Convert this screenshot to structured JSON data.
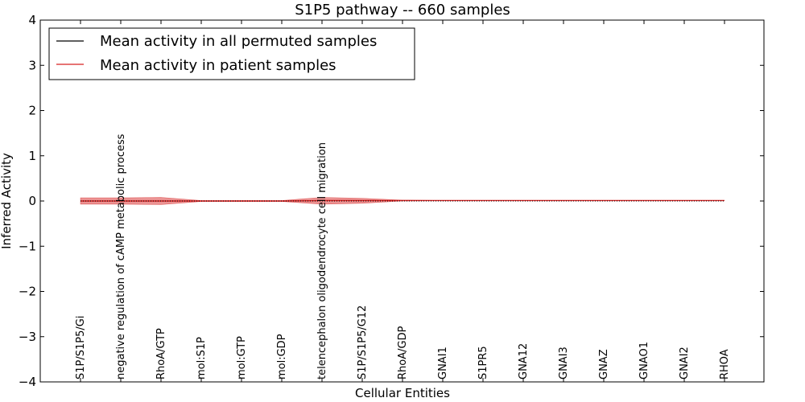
{
  "chart_data": {
    "type": "line",
    "title": "S1P5 pathway -- 660 samples",
    "xlabel": "Cellular Entities",
    "ylabel": "Inferred Activity",
    "ylim": [
      -4,
      4
    ],
    "yticks": [
      4,
      3,
      2,
      1,
      0,
      -1,
      -2,
      -3,
      -4
    ],
    "ytick_labels": [
      "4",
      "3",
      "2",
      "1",
      "0",
      "−1",
      "−2",
      "−3",
      "−4"
    ],
    "categories": [
      "S1P/S1P5/Gi",
      "negative regulation of cAMP metabolic process",
      "RhoA/GTP",
      "mol:S1P",
      "mol:GTP",
      "mol:GDP",
      "telencephalon oligodendrocyte cell migration",
      "S1P/S1P5/G12",
      "RhoA/GDP",
      "GNAI1",
      "S1PR5",
      "GNA12",
      "GNAI3",
      "GNAZ",
      "GNAO1",
      "GNAI2",
      "RHOA"
    ],
    "series": [
      {
        "name": "Mean activity in all permuted samples",
        "color": "#000000",
        "style": "dotted",
        "values": [
          0,
          0,
          0,
          0,
          0,
          0,
          0,
          0,
          0,
          0,
          0,
          0,
          0,
          0,
          0,
          0,
          0
        ]
      },
      {
        "name": "Mean activity in patient samples",
        "color": "#d62020",
        "style": "solid",
        "values": [
          0,
          0,
          0,
          0,
          0,
          0,
          0.01,
          0.01,
          0.01,
          0.01,
          0.01,
          0.01,
          0.01,
          0.01,
          0.01,
          0.01,
          0.01
        ],
        "band_upper": [
          0.07,
          0.07,
          0.08,
          0.01,
          0.01,
          0.01,
          0.08,
          0.06,
          0.02,
          0.01,
          0.01,
          0.01,
          0.01,
          0.01,
          0.01,
          0.01,
          0.01
        ],
        "band_lower": [
          -0.07,
          -0.07,
          -0.08,
          -0.01,
          -0.01,
          -0.01,
          -0.07,
          -0.05,
          0.0,
          0.01,
          0.01,
          0.01,
          0.01,
          0.01,
          0.01,
          0.01,
          0.01
        ],
        "band_color": "#e88080"
      }
    ],
    "legend_position": "top-left"
  }
}
